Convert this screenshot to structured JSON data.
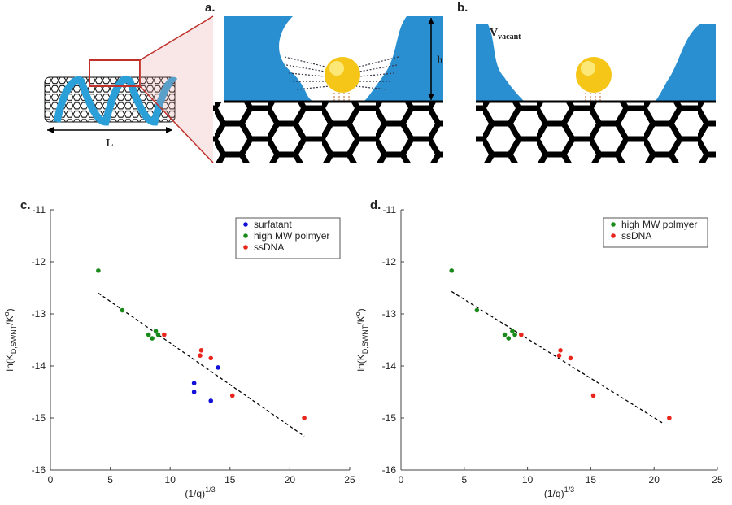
{
  "panels": {
    "a": "a.",
    "b": "b.",
    "length": "L",
    "height": "h",
    "vacant": {
      "base": "V",
      "sub": "vacant"
    }
  },
  "chart_data": [
    {
      "type": "scatter",
      "panel_label": "c.",
      "xlabel": {
        "base": "(1/q)",
        "sup": "1/3"
      },
      "ylabel": {
        "base": "ln(K",
        "sub": "D,SWNT",
        "mid": "/K",
        "sup": "o",
        "end": ")"
      },
      "xlim": [
        0,
        25
      ],
      "xticks": [
        0,
        5,
        10,
        15,
        20,
        25
      ],
      "ylim": [
        -16,
        -11
      ],
      "yticks": [
        -16,
        -15,
        -14,
        -13,
        -12,
        -11
      ],
      "legend": "upper right",
      "series": [
        {
          "name": "surfatant",
          "color": "#1010d8",
          "x": [
            12,
            12,
            13.4,
            14
          ],
          "values": [
            -14.33,
            -14.5,
            -14.67,
            -14.03
          ]
        },
        {
          "name": "high MW polmyer",
          "color": "#1a8a1a",
          "x": [
            4,
            6,
            8.2,
            8.5,
            8.8,
            9.0
          ],
          "values": [
            -12.17,
            -12.93,
            -13.4,
            -13.47,
            -13.33,
            -13.4
          ]
        },
        {
          "name": "ssDNA",
          "color": "#e8261c",
          "x": [
            9.5,
            12.6,
            12.5,
            13.4,
            15.2,
            21.2
          ],
          "values": [
            -13.4,
            -13.7,
            -13.8,
            -13.85,
            -14.57,
            -15.0
          ]
        }
      ],
      "fit": {
        "x": [
          4,
          21.2
        ],
        "values": [
          -12.6,
          -15.35
        ]
      }
    },
    {
      "type": "scatter",
      "panel_label": "d.",
      "xlabel": {
        "base": "(1/q)",
        "sup": "1/3"
      },
      "ylabel": {
        "base": "ln(K",
        "sub": "D,SWNT",
        "mid": "/K",
        "sup": "o",
        "end": ")"
      },
      "xlim": [
        0,
        25
      ],
      "xticks": [
        0,
        5,
        10,
        15,
        20,
        25
      ],
      "ylim": [
        -16,
        -11
      ],
      "yticks": [
        -16,
        -15,
        -14,
        -13,
        -12,
        -11
      ],
      "legend": "upper right",
      "series": [
        {
          "name": "high MW polmyer",
          "color": "#1a8a1a",
          "x": [
            4,
            6,
            8.2,
            8.5,
            8.8,
            9.0
          ],
          "values": [
            -12.17,
            -12.93,
            -13.4,
            -13.47,
            -13.33,
            -13.4
          ]
        },
        {
          "name": "ssDNA",
          "color": "#e8261c",
          "x": [
            9.5,
            12.6,
            12.5,
            13.4,
            15.2,
            21.2
          ],
          "values": [
            -13.4,
            -13.7,
            -13.8,
            -13.85,
            -14.57,
            -15.0
          ]
        }
      ],
      "fit": {
        "x": [
          4,
          20.7
        ],
        "values": [
          -12.57,
          -15.1
        ]
      }
    }
  ]
}
